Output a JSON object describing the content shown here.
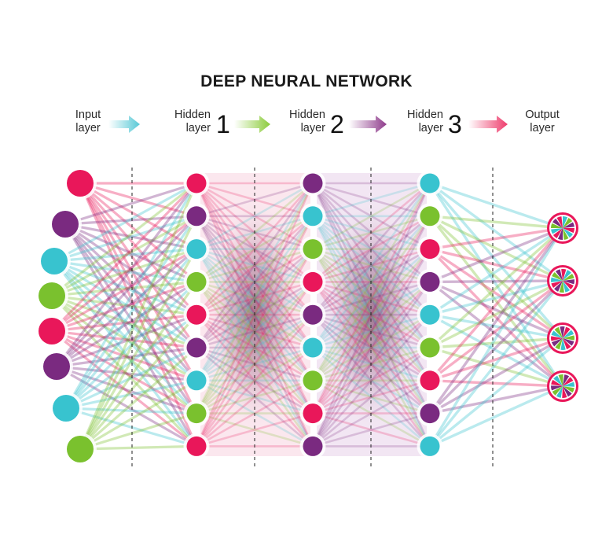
{
  "title": "DEEP NEURAL NETWORK",
  "stages": [
    {
      "line1": "Input",
      "line2": "layer",
      "number": ""
    },
    {
      "line1": "Hidden",
      "line2": "layer",
      "number": "1"
    },
    {
      "line1": "Hidden",
      "line2": "layer",
      "number": "2"
    },
    {
      "line1": "Hidden",
      "line2": "layer",
      "number": "3"
    },
    {
      "line1": "Output",
      "line2": "layer",
      "number": ""
    }
  ],
  "stage_arrow_colors": [
    "#58c9d6",
    "#8ccc3c",
    "#8f3c8c",
    "#ee3c6c"
  ],
  "palette": {
    "red": "#e9175a",
    "purple": "#7a2a80",
    "cyan": "#38c3cf",
    "green": "#7ac12e"
  },
  "layers": [
    {
      "name": "input",
      "nodes": [
        "red",
        "purple",
        "cyan",
        "green",
        "red",
        "purple",
        "cyan",
        "green"
      ]
    },
    {
      "name": "hidden-1",
      "nodes": [
        "red",
        "purple",
        "cyan",
        "green",
        "red",
        "purple",
        "cyan",
        "green",
        "red"
      ]
    },
    {
      "name": "hidden-2",
      "nodes": [
        "purple",
        "cyan",
        "green",
        "red",
        "purple",
        "cyan",
        "green",
        "red",
        "purple"
      ]
    },
    {
      "name": "hidden-3",
      "nodes": [
        "cyan",
        "green",
        "red",
        "purple",
        "cyan",
        "green",
        "red",
        "purple",
        "cyan"
      ]
    },
    {
      "name": "output",
      "nodes": [
        "pinwheel",
        "pinwheel",
        "pinwheel",
        "pinwheel"
      ]
    }
  ],
  "separators": 4
}
